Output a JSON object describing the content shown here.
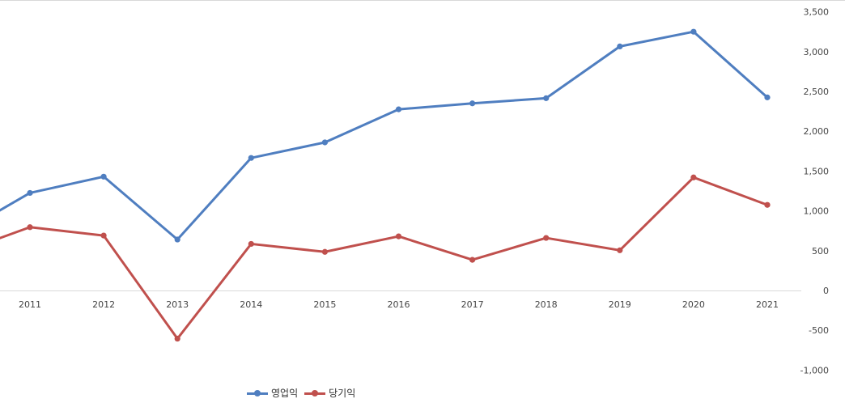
{
  "chart_data": {
    "type": "line",
    "categories": [
      "2011",
      "2012",
      "2013",
      "2014",
      "2015",
      "2016",
      "2017",
      "2018",
      "2019",
      "2020",
      "2021"
    ],
    "prev_values": {
      "영업익": 690,
      "당기익": 460
    },
    "series": [
      {
        "name": "영업익",
        "color": "#4f7ec0",
        "values": [
          1225,
          1430,
          640,
          1665,
          1860,
          2275,
          2350,
          2415,
          3065,
          3250,
          2425
        ]
      },
      {
        "name": "당기익",
        "color": "#c0504d",
        "values": [
          795,
          690,
          -605,
          585,
          485,
          680,
          385,
          660,
          505,
          1420,
          1075
        ]
      }
    ],
    "y_ticks": [
      "3,500",
      "3,000",
      "2,500",
      "2,000",
      "1,500",
      "1,000",
      "500",
      "0",
      "-500",
      "-1,000"
    ],
    "ylim": [
      -1000,
      3500
    ],
    "y_axis_side": "right",
    "negative_tick_color": "#ff0000",
    "grid": false,
    "legend_position": "bottom"
  }
}
